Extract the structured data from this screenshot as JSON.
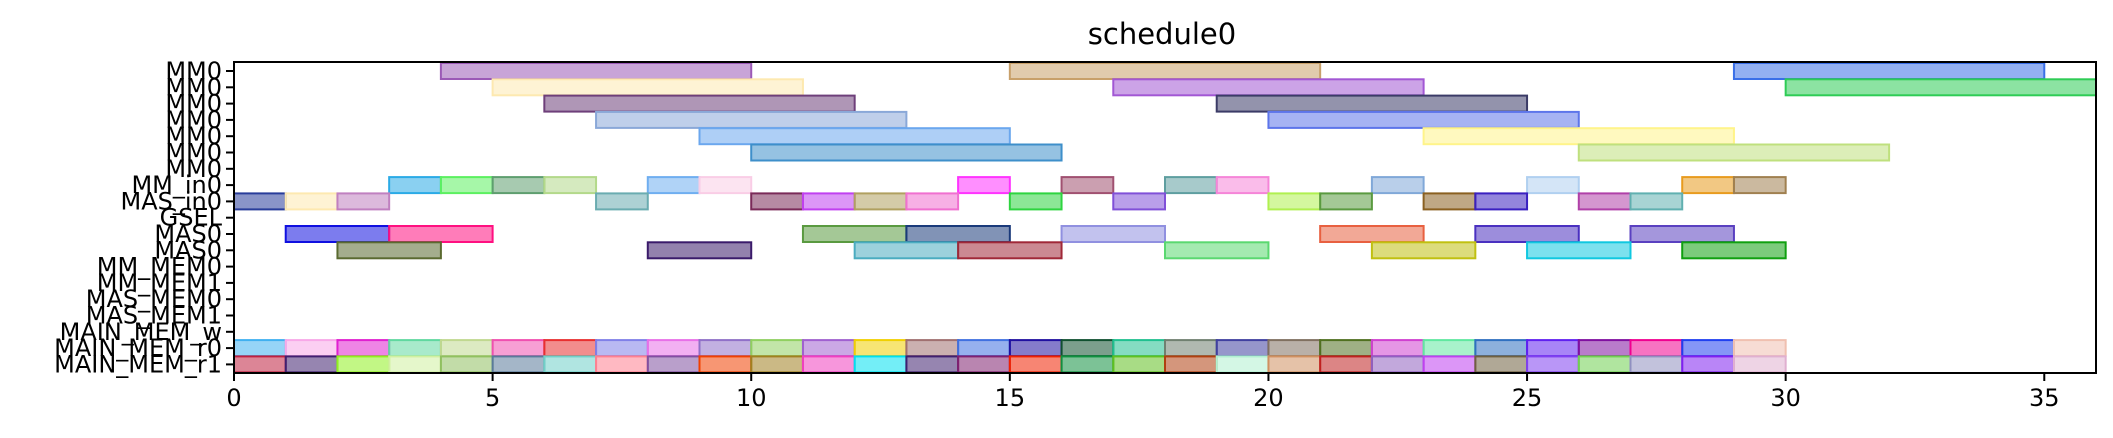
{
  "chart_data": {
    "type": "gantt",
    "title": "schedule0",
    "xlabel": "",
    "ylabel": "",
    "xlim": [
      0,
      36
    ],
    "x_ticks": [
      0,
      5,
      10,
      15,
      20,
      25,
      30,
      35
    ],
    "grid": false,
    "rows": [
      "MM0",
      "MM0",
      "MM0",
      "MM0",
      "MM0",
      "MM0",
      "MM0",
      "MM_in0",
      "MAS_in0",
      "GSEL",
      "MAS0",
      "MAS0",
      "MM_MEM0",
      "MM_MEM1",
      "MAS_MEM0",
      "MAS_MEM1",
      "MAIN_MEM_w",
      "MAIN_MEM_r0",
      "MAIN_MEM_r1"
    ],
    "bars": [
      {
        "row": 0,
        "start": 4,
        "end": 10,
        "color": "#9b59b6"
      },
      {
        "row": 0,
        "start": 15,
        "end": 21,
        "color": "#c8a06a"
      },
      {
        "row": 0,
        "start": 29,
        "end": 35,
        "color": "#3a6fe8"
      },
      {
        "row": 1,
        "start": 5,
        "end": 11,
        "color": "#fde9b0"
      },
      {
        "row": 1,
        "start": 17,
        "end": 23,
        "color": "#a257d4"
      },
      {
        "row": 1,
        "start": 30,
        "end": 36,
        "color": "#2ecc55"
      },
      {
        "row": 2,
        "start": 6,
        "end": 12,
        "color": "#6e3f7a"
      },
      {
        "row": 2,
        "start": 19,
        "end": 25,
        "color": "#3b3b67"
      },
      {
        "row": 3,
        "start": 7,
        "end": 13,
        "color": "#8aa8d8"
      },
      {
        "row": 3,
        "start": 20,
        "end": 26,
        "color": "#5d75ea"
      },
      {
        "row": 4,
        "start": 9,
        "end": 15,
        "color": "#6ba7ee"
      },
      {
        "row": 4,
        "start": 23,
        "end": 29,
        "color": "#fff48a"
      },
      {
        "row": 5,
        "start": 10,
        "end": 16,
        "color": "#3e8fca"
      },
      {
        "row": 5,
        "start": 26,
        "end": 32,
        "color": "#bfe07e"
      },
      {
        "row": 7,
        "start": 3,
        "end": 4,
        "color": "#2aaae6"
      },
      {
        "row": 7,
        "start": 4,
        "end": 5,
        "color": "#5cf060"
      },
      {
        "row": 7,
        "start": 5,
        "end": 6,
        "color": "#5e9e6f"
      },
      {
        "row": 7,
        "start": 6,
        "end": 7,
        "color": "#b3d98a"
      },
      {
        "row": 7,
        "start": 8,
        "end": 9,
        "color": "#6faef0"
      },
      {
        "row": 7,
        "start": 9,
        "end": 10,
        "color": "#f9cde6"
      },
      {
        "row": 7,
        "start": 14,
        "end": 15,
        "color": "#ff33ff"
      },
      {
        "row": 7,
        "start": 16,
        "end": 17,
        "color": "#a05070"
      },
      {
        "row": 7,
        "start": 18,
        "end": 19,
        "color": "#5e9ea0"
      },
      {
        "row": 7,
        "start": 19,
        "end": 20,
        "color": "#f585d8"
      },
      {
        "row": 7,
        "start": 22,
        "end": 23,
        "color": "#80a8d8"
      },
      {
        "row": 7,
        "start": 25,
        "end": 26,
        "color": "#b0d0f0"
      },
      {
        "row": 7,
        "start": 28,
        "end": 29,
        "color": "#e89b1e"
      },
      {
        "row": 7,
        "start": 29,
        "end": 30,
        "color": "#a08050"
      },
      {
        "row": 8,
        "start": 0,
        "end": 1,
        "color": "#283c9a"
      },
      {
        "row": 8,
        "start": 1,
        "end": 2,
        "color": "#fde9b0"
      },
      {
        "row": 8,
        "start": 2,
        "end": 3,
        "color": "#c080c0"
      },
      {
        "row": 8,
        "start": 7,
        "end": 8,
        "color": "#6aacb0"
      },
      {
        "row": 8,
        "start": 10,
        "end": 11,
        "color": "#7a2a58"
      },
      {
        "row": 8,
        "start": 11,
        "end": 12,
        "color": "#c040f0"
      },
      {
        "row": 8,
        "start": 12,
        "end": 13,
        "color": "#b0a060"
      },
      {
        "row": 8,
        "start": 13,
        "end": 14,
        "color": "#f070d0"
      },
      {
        "row": 8,
        "start": 15,
        "end": 16,
        "color": "#2ed440"
      },
      {
        "row": 8,
        "start": 17,
        "end": 18,
        "color": "#8050d8"
      },
      {
        "row": 8,
        "start": 20,
        "end": 21,
        "color": "#b0f050"
      },
      {
        "row": 8,
        "start": 21,
        "end": 22,
        "color": "#5a9a40"
      },
      {
        "row": 8,
        "start": 23,
        "end": 24,
        "color": "#8a6020"
      },
      {
        "row": 8,
        "start": 24,
        "end": 25,
        "color": "#3a20c0"
      },
      {
        "row": 8,
        "start": 26,
        "end": 27,
        "color": "#b040a8"
      },
      {
        "row": 8,
        "start": 27,
        "end": 28,
        "color": "#60b0b0"
      },
      {
        "row": 10,
        "start": 1,
        "end": 3,
        "color": "#1010e0"
      },
      {
        "row": 10,
        "start": 3,
        "end": 5,
        "color": "#ff1080"
      },
      {
        "row": 10,
        "start": 11,
        "end": 13,
        "color": "#5a9a40"
      },
      {
        "row": 10,
        "start": 13,
        "end": 15,
        "color": "#1a3a7a"
      },
      {
        "row": 10,
        "start": 16,
        "end": 18,
        "color": "#9090e0"
      },
      {
        "row": 10,
        "start": 21,
        "end": 23,
        "color": "#e86040"
      },
      {
        "row": 10,
        "start": 24,
        "end": 26,
        "color": "#4a30c0"
      },
      {
        "row": 10,
        "start": 27,
        "end": 29,
        "color": "#5a40c0"
      },
      {
        "row": 11,
        "start": 2,
        "end": 4,
        "color": "#5a6a30"
      },
      {
        "row": 11,
        "start": 8,
        "end": 10,
        "color": "#3a1a6a"
      },
      {
        "row": 11,
        "start": 12,
        "end": 14,
        "color": "#4aacc0"
      },
      {
        "row": 11,
        "start": 14,
        "end": 16,
        "color": "#a02838"
      },
      {
        "row": 11,
        "start": 18,
        "end": 20,
        "color": "#5ad870"
      },
      {
        "row": 11,
        "start": 22,
        "end": 24,
        "color": "#c0c010"
      },
      {
        "row": 11,
        "start": 25,
        "end": 27,
        "color": "#10c8e0"
      },
      {
        "row": 11,
        "start": 28,
        "end": 30,
        "color": "#10a010"
      },
      {
        "row": 17,
        "start": 0,
        "end": 1,
        "color": "#40b0f0"
      },
      {
        "row": 17,
        "start": 1,
        "end": 2,
        "color": "#f8a8e8"
      },
      {
        "row": 17,
        "start": 2,
        "end": 3,
        "color": "#e020d0"
      },
      {
        "row": 17,
        "start": 3,
        "end": 4,
        "color": "#60d8a0"
      },
      {
        "row": 17,
        "start": 4,
        "end": 5,
        "color": "#c0d890"
      },
      {
        "row": 17,
        "start": 5,
        "end": 6,
        "color": "#f050b0"
      },
      {
        "row": 17,
        "start": 6,
        "end": 7,
        "color": "#e83030"
      },
      {
        "row": 17,
        "start": 7,
        "end": 8,
        "color": "#8080e8"
      },
      {
        "row": 17,
        "start": 8,
        "end": 9,
        "color": "#e870e8"
      },
      {
        "row": 17,
        "start": 9,
        "end": 10,
        "color": "#9070c8"
      },
      {
        "row": 17,
        "start": 10,
        "end": 11,
        "color": "#90d060"
      },
      {
        "row": 17,
        "start": 11,
        "end": 12,
        "color": "#a060d0"
      },
      {
        "row": 17,
        "start": 12,
        "end": 13,
        "color": "#f0d000"
      },
      {
        "row": 17,
        "start": 13,
        "end": 14,
        "color": "#a07070"
      },
      {
        "row": 17,
        "start": 14,
        "end": 15,
        "color": "#4070e0"
      },
      {
        "row": 17,
        "start": 15,
        "end": 16,
        "color": "#2010a0"
      },
      {
        "row": 17,
        "start": 16,
        "end": 17,
        "color": "#105030"
      },
      {
        "row": 17,
        "start": 17,
        "end": 18,
        "color": "#20c090"
      },
      {
        "row": 17,
        "start": 18,
        "end": 19,
        "color": "#708070"
      },
      {
        "row": 17,
        "start": 19,
        "end": 20,
        "color": "#4040a0"
      },
      {
        "row": 17,
        "start": 20,
        "end": 21,
        "color": "#807060"
      },
      {
        "row": 17,
        "start": 21,
        "end": 22,
        "color": "#507020"
      },
      {
        "row": 17,
        "start": 22,
        "end": 23,
        "color": "#d040d0"
      },
      {
        "row": 17,
        "start": 23,
        "end": 24,
        "color": "#60e8a0"
      },
      {
        "row": 17,
        "start": 24,
        "end": 25,
        "color": "#3070c0"
      },
      {
        "row": 17,
        "start": 25,
        "end": 26,
        "color": "#6020f0"
      },
      {
        "row": 17,
        "start": 26,
        "end": 27,
        "color": "#8010a0"
      },
      {
        "row": 17,
        "start": 27,
        "end": 28,
        "color": "#f00090"
      },
      {
        "row": 17,
        "start": 28,
        "end": 29,
        "color": "#2040f0"
      },
      {
        "row": 17,
        "start": 29,
        "end": 30,
        "color": "#f0c0b0"
      },
      {
        "row": 18,
        "start": 0,
        "end": 1,
        "color": "#c02040"
      },
      {
        "row": 18,
        "start": 1,
        "end": 2,
        "color": "#402070"
      },
      {
        "row": 18,
        "start": 2,
        "end": 3,
        "color": "#90f020"
      },
      {
        "row": 18,
        "start": 3,
        "end": 4,
        "color": "#d0f0a0"
      },
      {
        "row": 18,
        "start": 4,
        "end": 5,
        "color": "#90c060"
      },
      {
        "row": 18,
        "start": 5,
        "end": 6,
        "color": "#5a7a9a"
      },
      {
        "row": 18,
        "start": 6,
        "end": 7,
        "color": "#70d0c8"
      },
      {
        "row": 18,
        "start": 7,
        "end": 8,
        "color": "#ff8090"
      },
      {
        "row": 18,
        "start": 8,
        "end": 9,
        "color": "#8050a0"
      },
      {
        "row": 18,
        "start": 9,
        "end": 10,
        "color": "#f04000"
      },
      {
        "row": 18,
        "start": 10,
        "end": 11,
        "color": "#a08020"
      },
      {
        "row": 18,
        "start": 11,
        "end": 12,
        "color": "#f040c0"
      },
      {
        "row": 18,
        "start": 12,
        "end": 13,
        "color": "#00e0f0"
      },
      {
        "row": 18,
        "start": 13,
        "end": 14,
        "color": "#402070"
      },
      {
        "row": 18,
        "start": 14,
        "end": 15,
        "color": "#802070"
      },
      {
        "row": 18,
        "start": 15,
        "end": 16,
        "color": "#f02000"
      },
      {
        "row": 18,
        "start": 16,
        "end": 17,
        "color": "#109040"
      },
      {
        "row": 18,
        "start": 17,
        "end": 18,
        "color": "#60c020"
      },
      {
        "row": 18,
        "start": 18,
        "end": 19,
        "color": "#b04010"
      },
      {
        "row": 18,
        "start": 19,
        "end": 20,
        "color": "#b0f0d0"
      },
      {
        "row": 18,
        "start": 20,
        "end": 21,
        "color": "#d09060"
      },
      {
        "row": 18,
        "start": 21,
        "end": 22,
        "color": "#c02020"
      },
      {
        "row": 18,
        "start": 22,
        "end": 23,
        "color": "#9060c0"
      },
      {
        "row": 18,
        "start": 23,
        "end": 24,
        "color": "#c040f0"
      },
      {
        "row": 18,
        "start": 24,
        "end": 25,
        "color": "#706040"
      },
      {
        "row": 18,
        "start": 25,
        "end": 26,
        "color": "#8040f0"
      },
      {
        "row": 18,
        "start": 26,
        "end": 27,
        "color": "#70d050"
      },
      {
        "row": 18,
        "start": 27,
        "end": 28,
        "color": "#9090c0"
      },
      {
        "row": 18,
        "start": 28,
        "end": 29,
        "color": "#8020f0"
      },
      {
        "row": 18,
        "start": 29,
        "end": 30,
        "color": "#e0b0d0"
      }
    ]
  }
}
